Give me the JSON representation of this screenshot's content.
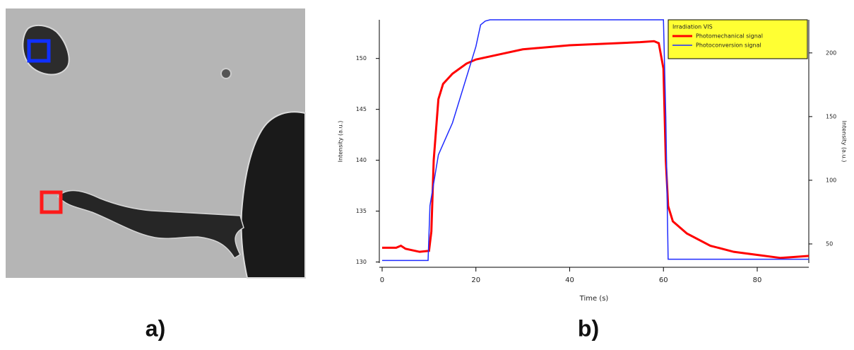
{
  "panel_labels": [
    "a)",
    "b)"
  ],
  "chart_data": {
    "type": "line",
    "x_label": "Time (s)",
    "y_label": "Intensity (a.u.)",
    "y2_label": "Intensity (a.u.)",
    "legend_title": "Irradiation VIS",
    "legend": "top-right",
    "xlim": [
      -0.6,
      91
    ],
    "xticks": [
      0,
      20,
      40,
      60,
      80
    ],
    "ylim": [
      129.9,
      153.8
    ],
    "yticks": [
      130,
      135,
      140,
      145,
      150
    ],
    "y2lim": [
      35,
      226
    ],
    "y2ticks": [
      50,
      100,
      150,
      200
    ],
    "series": [
      {
        "name": "Photomechanical signal",
        "color": "#ff0000",
        "x": [
          0,
          3,
          4,
          5,
          8,
          10,
          10.5,
          11,
          12,
          13,
          15,
          18,
          20,
          25,
          30,
          40,
          50,
          55,
          58,
          59,
          60,
          60.5,
          61,
          62,
          65,
          70,
          75,
          80,
          85,
          88,
          91
        ],
        "values": [
          131.4,
          131.4,
          131.6,
          131.3,
          131.0,
          131.1,
          133,
          140,
          146,
          147.5,
          148.5,
          149.5,
          149.9,
          150.4,
          150.9,
          151.3,
          151.5,
          151.6,
          151.7,
          151.5,
          149,
          140,
          135.5,
          134,
          132.8,
          131.6,
          131.0,
          130.7,
          130.4,
          130.5,
          130.6
        ]
      },
      {
        "name": "Photoconversion signal",
        "color": "#1f2bff",
        "axis": "y2",
        "x": [
          0,
          9.8,
          10.2,
          12,
          15,
          20,
          21,
          22,
          23,
          60,
          60.5,
          61,
          91
        ],
        "values": [
          37,
          37,
          80,
          120,
          145,
          205,
          222,
          225,
          226,
          226,
          150,
          38,
          38
        ]
      }
    ]
  }
}
